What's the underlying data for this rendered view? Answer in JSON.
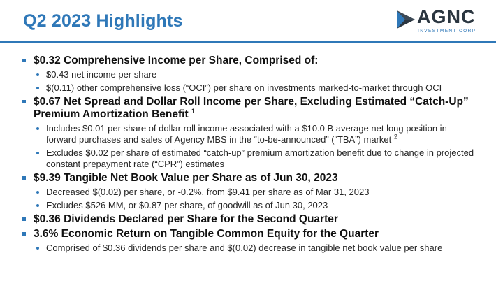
{
  "slide": {
    "title": "Q2 2023 Highlights"
  },
  "logo": {
    "wordmark": "AGNC",
    "tagline": "INVESTMENT CORP",
    "colors": {
      "dark": "#2b3640",
      "blue": "#2f78b8"
    }
  },
  "highlights": [
    {
      "text": "$0.32 Comprehensive Income per Share, Comprised of:",
      "footnote": "",
      "subs": [
        {
          "text": "$0.43 net income per share",
          "footnote": ""
        },
        {
          "text": "$(0.11) other comprehensive loss (“OCI”) per share on investments marked-to-market through OCI",
          "footnote": ""
        }
      ]
    },
    {
      "text": "$0.67 Net Spread and Dollar Roll Income per Share, Excluding Estimated “Catch-Up” Premium Amortization Benefit",
      "footnote": "1",
      "subs": [
        {
          "text": "Includes $0.01 per share of dollar roll income associated with a $10.0 B average net long position in forward purchases and sales of Agency MBS in the “to-be-announced” (“TBA”) market",
          "footnote": "2"
        },
        {
          "text": "Excludes $0.02 per share of estimated “catch-up” premium amortization benefit due to change in projected constant prepayment rate (“CPR”) estimates",
          "footnote": ""
        }
      ]
    },
    {
      "text": "$9.39 Tangible Net Book Value per Share as of Jun 30, 2023",
      "footnote": "",
      "subs": [
        {
          "text": "Decreased $(0.02) per share, or -0.2%, from $9.41 per share as of Mar 31, 2023",
          "footnote": ""
        },
        {
          "text": "Excludes $526 MM, or $0.87 per share, of goodwill as of Jun 30, 2023",
          "footnote": ""
        }
      ]
    },
    {
      "text": "$0.36 Dividends Declared per Share for the Second Quarter",
      "footnote": "",
      "subs": []
    },
    {
      "text": "3.6% Economic Return on Tangible Common Equity for the Quarter",
      "footnote": "",
      "subs": [
        {
          "text": "Comprised of $0.36 dividends per share and $(0.02) decrease in tangible net book value per share",
          "footnote": ""
        }
      ]
    }
  ]
}
